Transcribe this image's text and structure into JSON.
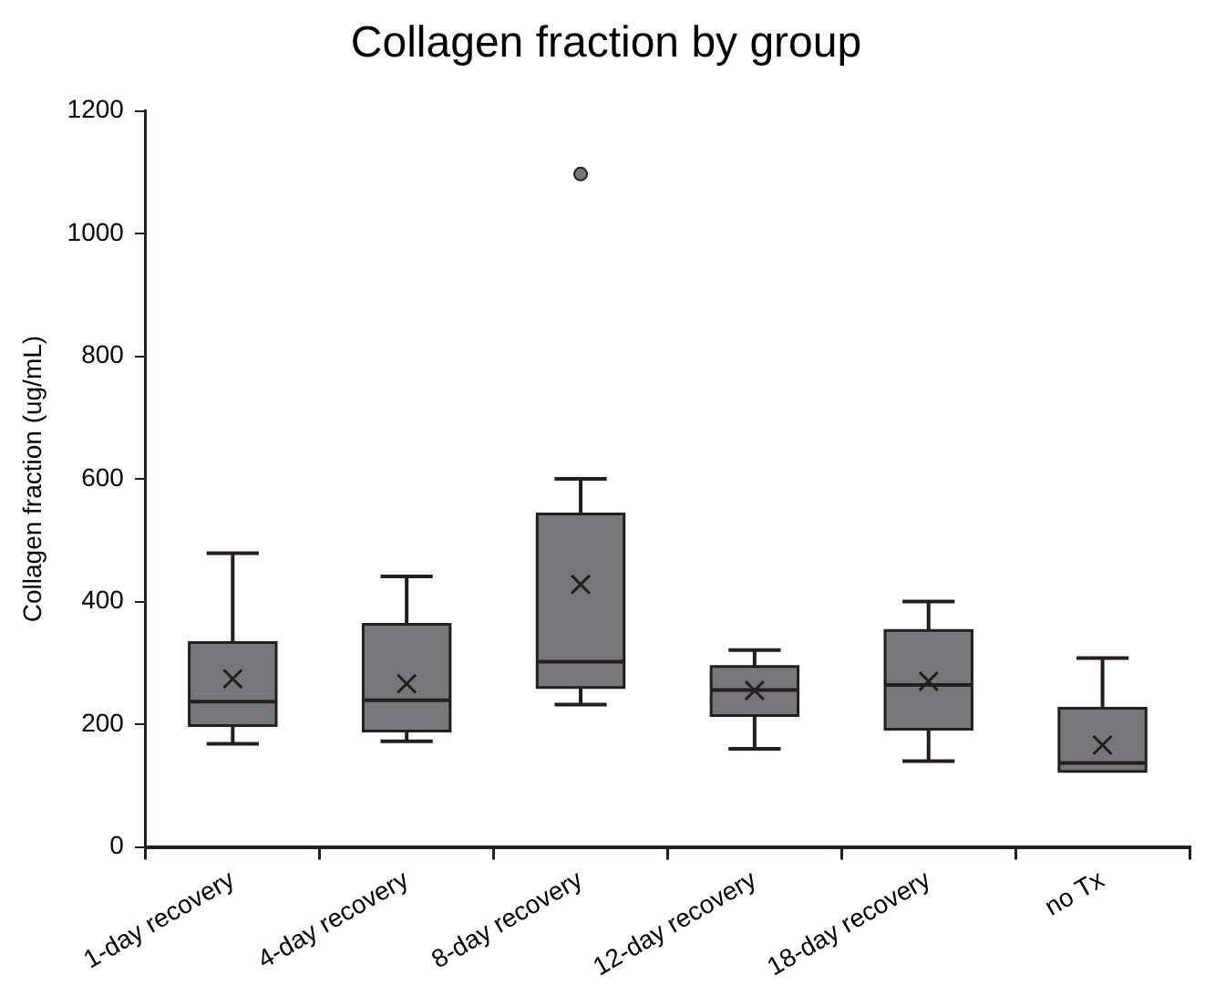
{
  "chart_data": {
    "type": "box",
    "title": "Collagen fraction by group",
    "ylabel": "Collagen fraction (ug/mL)",
    "categories": [
      "1-day recovery",
      "4-day recovery",
      "8-day recovery",
      "12-day recovery",
      "18-day recovery",
      "no Tx"
    ],
    "color": "#77777a",
    "boxes": [
      {
        "low": 168,
        "q1": 198,
        "median": 237,
        "q3": 333,
        "high": 479,
        "mean": 274
      },
      {
        "low": 172,
        "q1": 189,
        "median": 239,
        "q3": 363,
        "high": 441,
        "mean": 266
      },
      {
        "low": 232,
        "q1": 260,
        "median": 302,
        "q3": 543,
        "high": 600,
        "mean": 428,
        "outliers": [
          1097
        ]
      },
      {
        "low": 160,
        "q1": 214,
        "median": 256,
        "q3": 294,
        "high": 321,
        "mean": 255
      },
      {
        "low": 140,
        "q1": 192,
        "median": 264,
        "q3": 353,
        "high": 400,
        "mean": 270
      },
      {
        "low": 123,
        "q1": 123,
        "median": 137,
        "q3": 226,
        "high": 308,
        "mean": 166
      }
    ],
    "ylim": [
      0,
      1200
    ],
    "yticks": [
      0,
      200,
      400,
      600,
      800,
      1000,
      1200
    ],
    "grid": false,
    "legend": false,
    "marker": "cross"
  }
}
